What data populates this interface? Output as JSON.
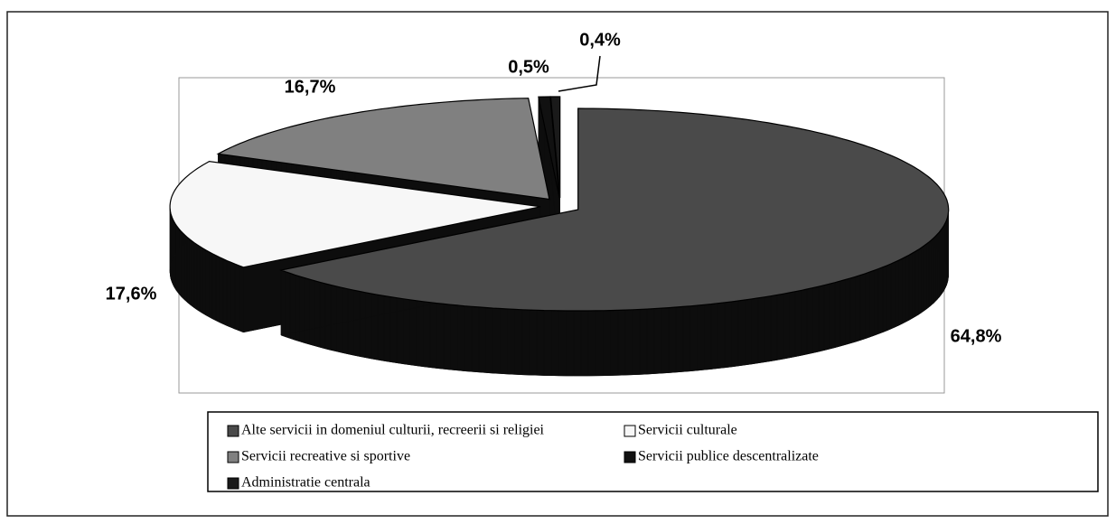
{
  "chart_data": {
    "type": "pie",
    "categories": [
      "Alte servicii in domeniul culturii, recreerii si religiei",
      "Servicii culturale",
      "Servicii recreative si sportive",
      "Servicii publice descentralizate",
      "Administratie centrala"
    ],
    "values": [
      64.8,
      17.6,
      16.7,
      0.5,
      0.4
    ],
    "value_labels": [
      "64,8%",
      "17,6%",
      "16,7%",
      "0,5%",
      "0,4%"
    ],
    "colors": [
      "#4a4a4a",
      "#f7f7f7",
      "#808080",
      "#111111",
      "#1a1a1a"
    ]
  }
}
